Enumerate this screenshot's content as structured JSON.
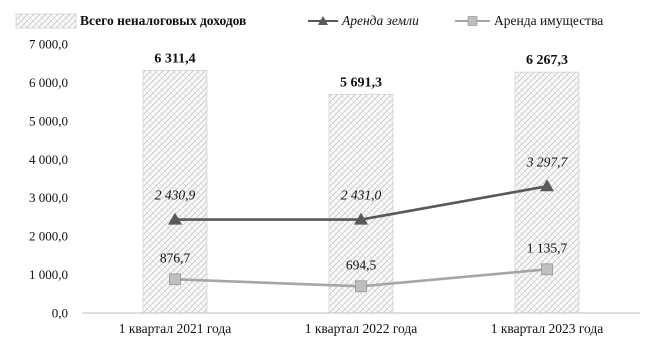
{
  "chart_data": {
    "type": "bar",
    "categories": [
      "1 квартал 2021 года",
      "1 квартал 2022 года",
      "1 квартал 2023 года"
    ],
    "ylim": [
      0,
      7000
    ],
    "yticks": [
      0,
      1000,
      2000,
      3000,
      4000,
      5000,
      6000,
      7000
    ],
    "ytick_labels": [
      "0,0",
      "1 000,0",
      "2 000,0",
      "3 000,0",
      "4 000,0",
      "5 000,0",
      "6 000,0",
      "7 000,0"
    ],
    "grid": false,
    "legend_position": "top",
    "series": [
      {
        "name": "Всего неналоговых доходов",
        "kind": "bar",
        "values": [
          6311.4,
          5691.3,
          6267.3
        ],
        "labels": [
          "6 311,4",
          "5 691,3",
          "6 267,3"
        ],
        "color": "#d9d9d9"
      },
      {
        "name": "Аренда земли",
        "kind": "line",
        "marker": "triangle",
        "values": [
          2430.9,
          2431.0,
          3297.7
        ],
        "labels": [
          "2 430,9",
          "2 431,0",
          "3 297,7"
        ],
        "color": "#595959"
      },
      {
        "name": "Аренда имущества",
        "kind": "line",
        "marker": "square",
        "values": [
          876.7,
          694.5,
          1135.7
        ],
        "labels": [
          "876,7",
          "694,5",
          "1 135,7"
        ],
        "color": "#a6a6a6"
      }
    ]
  }
}
